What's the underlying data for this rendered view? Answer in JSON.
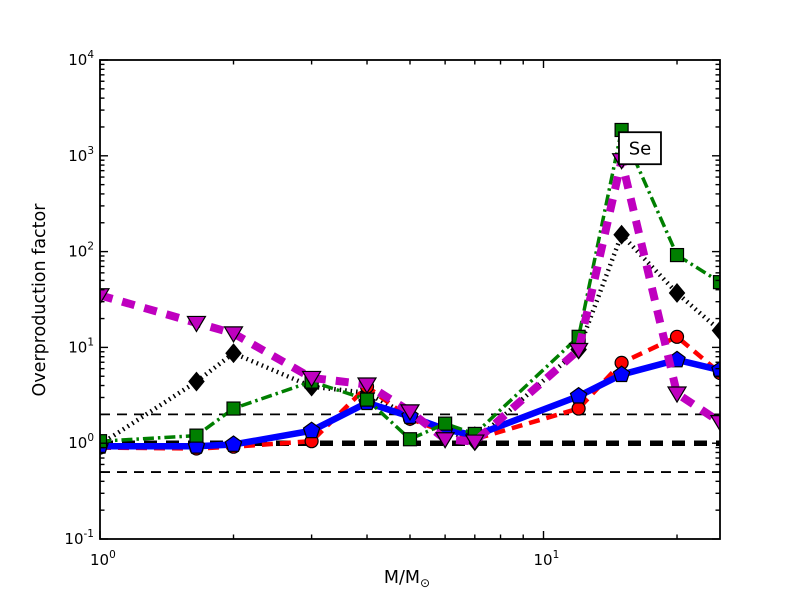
{
  "figure": {
    "background": "#ffffff",
    "spine_color": "#000000",
    "ylabel": "Overproduction factor",
    "xlabel_main": "M/M",
    "xlabel_sub": "⊙",
    "annotation": {
      "text": "Se"
    }
  },
  "chart_data": {
    "type": "line",
    "title": "",
    "xlabel": "M/M_sun",
    "ylabel": "Overproduction factor",
    "xscale": "log",
    "yscale": "log",
    "xlim": [
      1,
      25
    ],
    "ylim": [
      0.1,
      10000
    ],
    "grid": false,
    "legend": "none",
    "annotation": {
      "text": "Se",
      "x": 16.5,
      "y": 1200
    },
    "x_ticks_major": [
      {
        "value": 1,
        "exp": "0"
      },
      {
        "value": 10,
        "exp": "1"
      }
    ],
    "x_ticks_minor": [
      2,
      3,
      4,
      5,
      6,
      7,
      8,
      9,
      20
    ],
    "y_ticks_major": [
      {
        "value": 0.1,
        "exp": "-1"
      },
      {
        "value": 1,
        "exp": "0"
      },
      {
        "value": 10,
        "exp": "1"
      },
      {
        "value": 100,
        "exp": "2"
      },
      {
        "value": 1000,
        "exp": "3"
      },
      {
        "value": 10000,
        "exp": "4"
      }
    ],
    "y_minor_multiples": [
      2,
      3,
      4,
      5,
      6,
      7,
      8,
      9
    ],
    "reference_lines": [
      {
        "y": 1,
        "color": "#000000",
        "style": "dashed",
        "width": 5.5,
        "dash": "13 9"
      },
      {
        "y": 2,
        "color": "#000000",
        "style": "dashed",
        "width": 1.8,
        "dash": "10 7"
      },
      {
        "y": 0.5,
        "color": "#000000",
        "style": "dashed",
        "width": 1.8,
        "dash": "10 7"
      }
    ],
    "x": [
      1,
      1.65,
      2,
      3,
      4,
      5,
      6,
      7,
      12,
      15,
      20,
      25
    ],
    "series": [
      {
        "name": "black-dotted-diamond",
        "color": "#000000",
        "linestyle": "dotted",
        "linewidth": 4.5,
        "marker": "diamond",
        "values": [
          0.97,
          4.4,
          8.7,
          3.9,
          3.35,
          1.9,
          1.35,
          1.05,
          9.5,
          150,
          37,
          15
        ]
      },
      {
        "name": "red-dashed-circle",
        "color": "#ff0000",
        "linestyle": "dashed",
        "linewidth": 4.5,
        "marker": "circle",
        "values": [
          0.9,
          0.88,
          0.92,
          1.05,
          3.9,
          1.8,
          1.3,
          1.1,
          2.3,
          6.9,
          12.9,
          5.4
        ]
      },
      {
        "name": "blue-solid-pentagon",
        "color": "#0000ff",
        "linestyle": "solid",
        "linewidth": 6.5,
        "marker": "pentagon",
        "values": [
          0.93,
          0.93,
          0.97,
          1.35,
          2.65,
          1.9,
          1.4,
          1.2,
          3.1,
          5.2,
          7.4,
          5.8
        ]
      },
      {
        "name": "green-dashdot-square",
        "color": "#007f00",
        "linestyle": "dashdot",
        "linewidth": 3.5,
        "marker": "square",
        "values": [
          1.05,
          1.2,
          2.3,
          4.4,
          2.85,
          1.1,
          1.6,
          1.25,
          12.9,
          1860,
          92,
          48
        ]
      },
      {
        "name": "magenta-dashed-triangle",
        "color": "#bf00bf",
        "linestyle": "dashed-thick",
        "linewidth": 8,
        "marker": "triangle-down",
        "values": [
          35,
          18,
          14,
          4.8,
          4.1,
          2.15,
          1.1,
          1.04,
          9.4,
          900,
          3.3,
          1.66
        ]
      }
    ]
  }
}
